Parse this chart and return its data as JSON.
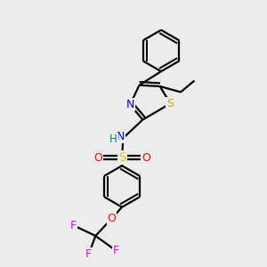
{
  "bg_color": "#ececec",
  "line_color": "#000000",
  "line_width": 1.6,
  "dbo": 0.18,
  "figsize": [
    3.0,
    3.0
  ],
  "dpi": 100,
  "colors": {
    "N": "#0000ee",
    "S_thiazole": "#ccaa00",
    "S_sulfonyl": "#ddcc00",
    "O": "#ff0000",
    "F": "#ee00ee",
    "H": "#008080",
    "C": "#000000"
  }
}
